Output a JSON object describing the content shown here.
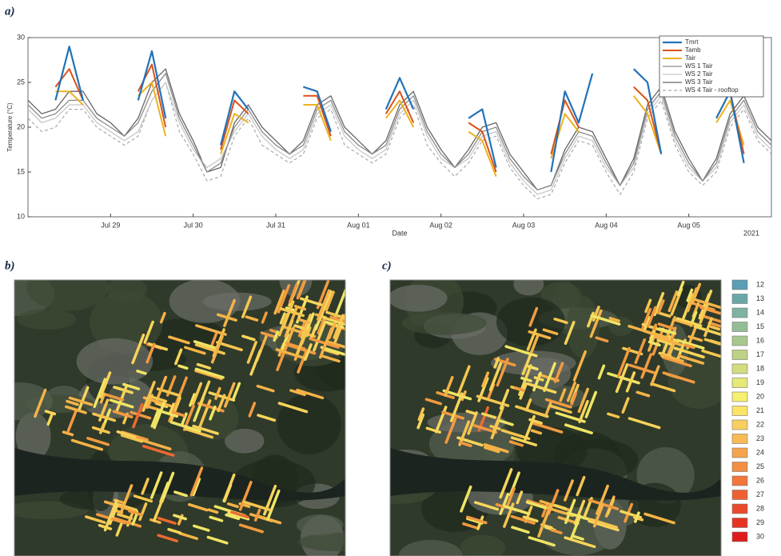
{
  "panels": [
    "a)",
    "b)",
    "c)"
  ],
  "chart_data": {
    "type": "line",
    "ylabel": "Temperature (°C)",
    "xlabel": "Date",
    "x_year_label": "2021",
    "legend": "upper right",
    "grid": false,
    "xlim": [
      "2021-07-28T00:00",
      "2021-08-06T00:00"
    ],
    "ylim": [
      10,
      30
    ],
    "yticks": [
      10,
      15,
      20,
      25,
      30
    ],
    "xticks": [
      {
        "value": "2021-07-29T00:00",
        "label": "Jul 29"
      },
      {
        "value": "2021-07-30T00:00",
        "label": "Jul 30"
      },
      {
        "value": "2021-07-31T00:00",
        "label": "Jul 31"
      },
      {
        "value": "2021-08-01T00:00",
        "label": "Aug 01"
      },
      {
        "value": "2021-08-02T00:00",
        "label": "Aug 02"
      },
      {
        "value": "2021-08-03T00:00",
        "label": "Aug 03"
      },
      {
        "value": "2021-08-04T00:00",
        "label": "Aug 04"
      },
      {
        "value": "2021-08-05T00:00",
        "label": "Aug 05"
      }
    ],
    "x": [
      "2021-07-28T00:00",
      "2021-07-28T04:00",
      "2021-07-28T08:00",
      "2021-07-28T12:00",
      "2021-07-28T16:00",
      "2021-07-28T20:00",
      "2021-07-29T00:00",
      "2021-07-29T04:00",
      "2021-07-29T08:00",
      "2021-07-29T12:00",
      "2021-07-29T16:00",
      "2021-07-29T20:00",
      "2021-07-30T00:00",
      "2021-07-30T04:00",
      "2021-07-30T08:00",
      "2021-07-30T12:00",
      "2021-07-30T16:00",
      "2021-07-30T20:00",
      "2021-07-31T00:00",
      "2021-07-31T04:00",
      "2021-07-31T08:00",
      "2021-07-31T12:00",
      "2021-07-31T16:00",
      "2021-07-31T20:00",
      "2021-08-01T00:00",
      "2021-08-01T04:00",
      "2021-08-01T08:00",
      "2021-08-01T12:00",
      "2021-08-01T16:00",
      "2021-08-01T20:00",
      "2021-08-02T00:00",
      "2021-08-02T04:00",
      "2021-08-02T08:00",
      "2021-08-02T12:00",
      "2021-08-02T16:00",
      "2021-08-02T20:00",
      "2021-08-03T00:00",
      "2021-08-03T04:00",
      "2021-08-03T08:00",
      "2021-08-03T12:00",
      "2021-08-03T16:00",
      "2021-08-03T20:00",
      "2021-08-04T00:00",
      "2021-08-04T04:00",
      "2021-08-04T08:00",
      "2021-08-04T12:00",
      "2021-08-04T16:00",
      "2021-08-04T20:00",
      "2021-08-05T00:00",
      "2021-08-05T04:00",
      "2021-08-05T08:00",
      "2021-08-05T12:00",
      "2021-08-05T16:00",
      "2021-08-05T20:00",
      "2021-08-06T00:00"
    ],
    "series": [
      {
        "name": "Tmrt",
        "color": "#2272b8",
        "width": 2.2,
        "values": [
          null,
          null,
          23,
          29,
          23,
          null,
          null,
          null,
          23,
          28.5,
          21,
          null,
          null,
          null,
          18,
          24,
          22,
          null,
          null,
          null,
          24.5,
          24,
          19.5,
          null,
          null,
          null,
          22,
          25.5,
          22,
          null,
          null,
          null,
          21,
          22,
          15.5,
          null,
          null,
          null,
          15,
          24,
          20.5,
          26,
          null,
          null,
          26.5,
          25,
          17,
          null,
          null,
          null,
          21,
          24,
          16,
          null,
          null
        ]
      },
      {
        "name": "Tamb",
        "color": "#d95319",
        "width": 2,
        "values": [
          null,
          null,
          24.5,
          26.5,
          23,
          null,
          null,
          null,
          24,
          27,
          20,
          null,
          null,
          null,
          17.5,
          23,
          21.5,
          null,
          null,
          null,
          23.5,
          23.5,
          19,
          null,
          null,
          null,
          21.5,
          24,
          20.5,
          null,
          null,
          null,
          20.5,
          19.5,
          15,
          null,
          null,
          null,
          17,
          23,
          20,
          null,
          null,
          null,
          24.5,
          23,
          17,
          null,
          null,
          null,
          21,
          24,
          17,
          null,
          null
        ]
      },
      {
        "name": "Tair",
        "color": "#edb120",
        "width": 2,
        "values": [
          null,
          null,
          24,
          24,
          22.5,
          null,
          null,
          null,
          23.5,
          25,
          19,
          null,
          null,
          null,
          17,
          21.5,
          20.5,
          null,
          null,
          null,
          22.5,
          22.5,
          18.5,
          null,
          null,
          null,
          21,
          23,
          20,
          null,
          null,
          null,
          19.5,
          18.5,
          14.5,
          null,
          null,
          null,
          16.5,
          21.5,
          19.5,
          null,
          null,
          null,
          23.5,
          21.5,
          17,
          null,
          null,
          null,
          20.5,
          23,
          18,
          null,
          null
        ]
      },
      {
        "name": "WS 1 Tair",
        "color": "#8c8c8c",
        "width": 1.3,
        "values": [
          22.5,
          21,
          21.5,
          23,
          23,
          21,
          20,
          19,
          20.5,
          24,
          26,
          21,
          18,
          15,
          16,
          20,
          22,
          19.5,
          18,
          17,
          18,
          22,
          23,
          19.5,
          18,
          17,
          18,
          22,
          23.5,
          19.5,
          17,
          15.5,
          17,
          19.5,
          20,
          16.5,
          14.5,
          13,
          13.5,
          17,
          19.5,
          19,
          16,
          13.5,
          16,
          22,
          24,
          19,
          16,
          14,
          16,
          21,
          23,
          19.5,
          18
        ]
      },
      {
        "name": "WS 2 Tair",
        "color": "#c8c8c8",
        "width": 1.3,
        "values": [
          22,
          20.5,
          21,
          22.5,
          22.5,
          20.5,
          19.5,
          18.5,
          19.5,
          23,
          25,
          20.5,
          17.5,
          15.5,
          16.5,
          19.5,
          21.5,
          19,
          17.5,
          16.5,
          17.5,
          21.5,
          22.5,
          19,
          17.5,
          16.5,
          17.5,
          21.5,
          23,
          19,
          16.5,
          15.5,
          16.5,
          19,
          19.5,
          16,
          14,
          12.5,
          13,
          16.5,
          19,
          18.5,
          15.5,
          13.5,
          15.5,
          21.5,
          23.5,
          18.5,
          15.5,
          14,
          15.5,
          20.5,
          22.5,
          19,
          17.5
        ]
      },
      {
        "name": "WS 3 Tair",
        "color": "#666666",
        "width": 1.3,
        "values": [
          23,
          21.5,
          22,
          24,
          24,
          21.5,
          20.5,
          19,
          21,
          25,
          26.5,
          21.5,
          18.5,
          15,
          15.5,
          20.5,
          22.5,
          20,
          18.5,
          17,
          18.5,
          22.5,
          23.5,
          20,
          18.5,
          17,
          18.5,
          22.5,
          24,
          20,
          17.5,
          15.5,
          17.5,
          20,
          20.5,
          17,
          15,
          13,
          13.5,
          17.5,
          20,
          19.5,
          16.5,
          13.5,
          16.5,
          22.5,
          24.5,
          19.5,
          16.5,
          14,
          16.5,
          21.5,
          23.5,
          20,
          18.5
        ]
      },
      {
        "name": "WS 4 Tair - rooftop",
        "color": "#aaaaaa",
        "width": 1.2,
        "dashed": true,
        "values": [
          21,
          19.5,
          20,
          22,
          22,
          20,
          19,
          18,
          19,
          23,
          25,
          19.5,
          17,
          14,
          14.5,
          19,
          21,
          18,
          17,
          16,
          17,
          21,
          22,
          18,
          17,
          16,
          17,
          21,
          22.5,
          18,
          16,
          14.5,
          16,
          18.5,
          19,
          15.5,
          13.5,
          12,
          12.5,
          16,
          18.5,
          18,
          15,
          12.5,
          15,
          21,
          23,
          18,
          15,
          13.5,
          15,
          20,
          22,
          18.5,
          17
        ]
      }
    ]
  },
  "colorbar": {
    "labels": [
      12,
      13,
      14,
      15,
      16,
      17,
      18,
      19,
      20,
      21,
      22,
      23,
      24,
      25,
      26,
      27,
      28,
      29,
      30
    ],
    "colors": [
      "#5a9fb5",
      "#6aa8a8",
      "#7fb3a0",
      "#93bd97",
      "#a8c88e",
      "#bed286",
      "#d3dd7e",
      "#e6e877",
      "#f6f06e",
      "#fbe466",
      "#f9cf5d",
      "#f8ba54",
      "#f6a44b",
      "#f48e42",
      "#f1773a",
      "#ee6032",
      "#ea4a2a",
      "#e63322",
      "#e01b1b"
    ]
  }
}
